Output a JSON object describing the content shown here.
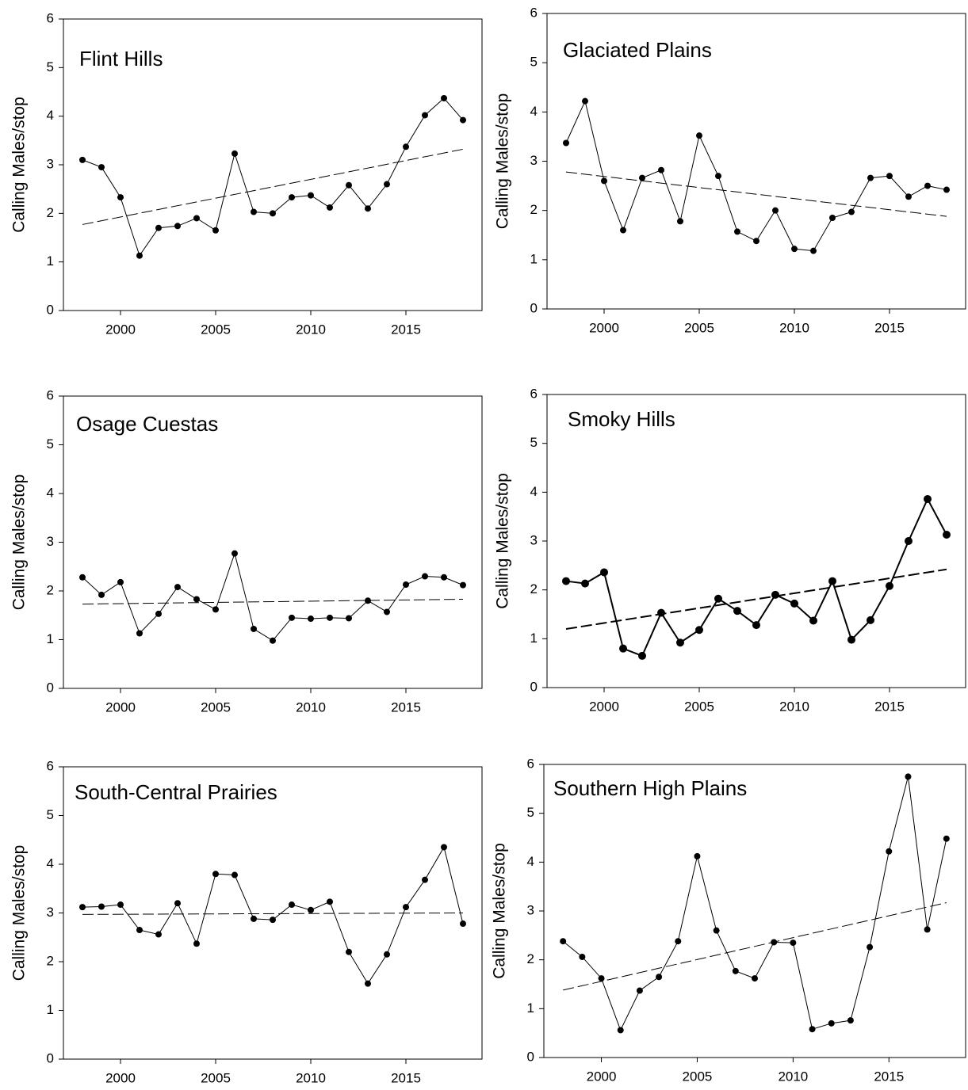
{
  "chart_data": [
    {
      "type": "line",
      "title": "Flint Hills",
      "y_label": "Calling Males/stop",
      "color": "#000000",
      "line_width": 1,
      "x": [
        1998,
        1999,
        2000,
        2001,
        2002,
        2003,
        2004,
        2005,
        2006,
        2007,
        2008,
        2009,
        2010,
        2011,
        2012,
        2013,
        2014,
        2015,
        2016,
        2017,
        2018
      ],
      "values": [
        3.1,
        2.95,
        2.33,
        1.13,
        1.7,
        1.74,
        1.9,
        1.65,
        3.23,
        2.03,
        2.0,
        2.33,
        2.37,
        2.12,
        2.58,
        2.1,
        2.6,
        3.37,
        4.02,
        4.37,
        3.92
      ],
      "trend": {
        "x": [
          1998,
          2018
        ],
        "values": [
          1.77,
          3.32
        ]
      },
      "xlim": [
        1997,
        2019
      ],
      "ylim": [
        0,
        6
      ],
      "xticks": [
        2000,
        2005,
        2010,
        2015
      ],
      "yticks": [
        0,
        1,
        2,
        3,
        4,
        5,
        6
      ]
    },
    {
      "type": "line",
      "title": "Glaciated Plains",
      "y_label": "Calling Males/stop",
      "color": "#000000",
      "line_width": 1,
      "x": [
        1998,
        1999,
        2000,
        2001,
        2002,
        2003,
        2004,
        2005,
        2006,
        2007,
        2008,
        2009,
        2010,
        2011,
        2012,
        2013,
        2014,
        2015,
        2016,
        2017,
        2018
      ],
      "values": [
        3.37,
        4.22,
        2.6,
        1.6,
        2.66,
        2.82,
        1.78,
        3.52,
        2.7,
        1.57,
        1.38,
        2.0,
        1.22,
        1.18,
        1.85,
        1.97,
        2.66,
        2.7,
        2.28,
        2.5,
        2.42
      ],
      "trend": {
        "x": [
          1998,
          2018
        ],
        "values": [
          2.78,
          1.88
        ]
      },
      "xlim": [
        1997,
        2019
      ],
      "ylim": [
        0,
        6
      ],
      "xticks": [
        2000,
        2005,
        2010,
        2015
      ],
      "yticks": [
        0,
        1,
        2,
        3,
        4,
        5,
        6
      ]
    },
    {
      "type": "line",
      "title": "Osage Cuestas",
      "y_label": "Calling Males/stop",
      "color": "#000000",
      "line_width": 1,
      "x": [
        1998,
        1999,
        2000,
        2001,
        2002,
        2003,
        2004,
        2005,
        2006,
        2007,
        2008,
        2009,
        2010,
        2011,
        2012,
        2013,
        2014,
        2015,
        2016,
        2017,
        2018
      ],
      "values": [
        2.28,
        1.92,
        2.18,
        1.13,
        1.53,
        2.08,
        1.83,
        1.62,
        2.77,
        1.22,
        0.98,
        1.45,
        1.43,
        1.45,
        1.44,
        1.8,
        1.57,
        2.13,
        2.3,
        2.28,
        2.12
      ],
      "trend": {
        "x": [
          1998,
          2018
        ],
        "values": [
          1.73,
          1.83
        ]
      },
      "xlim": [
        1997,
        2019
      ],
      "ylim": [
        0,
        6
      ],
      "xticks": [
        2000,
        2005,
        2010,
        2015
      ],
      "yticks": [
        0,
        1,
        2,
        3,
        4,
        5,
        6
      ]
    },
    {
      "type": "line",
      "title": "Smoky Hills",
      "y_label": "Calling Males/stop",
      "color": "#000000",
      "line_width": 2,
      "x": [
        1998,
        1999,
        2000,
        2001,
        2002,
        2003,
        2004,
        2005,
        2006,
        2007,
        2008,
        2009,
        2010,
        2011,
        2012,
        2013,
        2014,
        2015,
        2016,
        2017,
        2018
      ],
      "values": [
        2.18,
        2.13,
        2.36,
        0.8,
        0.65,
        1.53,
        0.92,
        1.18,
        1.82,
        1.57,
        1.28,
        1.9,
        1.72,
        1.37,
        2.18,
        0.98,
        1.38,
        2.08,
        3.0,
        3.86,
        3.13
      ],
      "trend": {
        "x": [
          1998,
          2018
        ],
        "values": [
          1.2,
          2.42
        ]
      },
      "xlim": [
        1997,
        2019
      ],
      "ylim": [
        0,
        6
      ],
      "xticks": [
        2000,
        2005,
        2010,
        2015
      ],
      "yticks": [
        0,
        1,
        2,
        3,
        4,
        5,
        6
      ]
    },
    {
      "type": "line",
      "title": "South-Central Prairies",
      "y_label": "Calling Males/stop",
      "color": "#000000",
      "line_width": 1,
      "x": [
        1998,
        1999,
        2000,
        2001,
        2002,
        2003,
        2004,
        2005,
        2006,
        2007,
        2008,
        2009,
        2010,
        2011,
        2012,
        2013,
        2014,
        2015,
        2016,
        2017,
        2018
      ],
      "values": [
        3.12,
        3.13,
        3.17,
        2.65,
        2.56,
        3.2,
        2.37,
        3.8,
        3.78,
        2.88,
        2.86,
        3.17,
        3.06,
        3.23,
        2.2,
        1.55,
        2.15,
        3.12,
        3.68,
        4.35,
        2.78
      ],
      "trend": {
        "x": [
          1998,
          2018
        ],
        "values": [
          2.97,
          3.0
        ]
      },
      "xlim": [
        1997,
        2019
      ],
      "ylim": [
        0,
        6
      ],
      "xticks": [
        2000,
        2005,
        2010,
        2015
      ],
      "yticks": [
        0,
        1,
        2,
        3,
        4,
        5,
        6
      ]
    },
    {
      "type": "line",
      "title": "Southern High Plains",
      "y_label": "Calling Males/stop",
      "color": "#000000",
      "line_width": 1,
      "x": [
        1998,
        1999,
        2000,
        2001,
        2002,
        2003,
        2004,
        2005,
        2006,
        2007,
        2008,
        2009,
        2010,
        2011,
        2012,
        2013,
        2014,
        2015,
        2016,
        2017,
        2018
      ],
      "values": [
        2.38,
        2.06,
        1.62,
        0.56,
        1.37,
        1.65,
        2.38,
        4.12,
        2.6,
        1.77,
        1.62,
        2.36,
        2.35,
        0.58,
        0.7,
        0.76,
        2.26,
        4.22,
        5.75,
        2.62,
        4.48
      ],
      "trend": {
        "x": [
          1998,
          2018
        ],
        "values": [
          1.38,
          3.17
        ]
      },
      "xlim": [
        1997,
        2019
      ],
      "ylim": [
        0,
        6
      ],
      "xticks": [
        2000,
        2005,
        2010,
        2015
      ],
      "yticks": [
        0,
        1,
        2,
        3,
        4,
        5,
        6
      ]
    }
  ]
}
